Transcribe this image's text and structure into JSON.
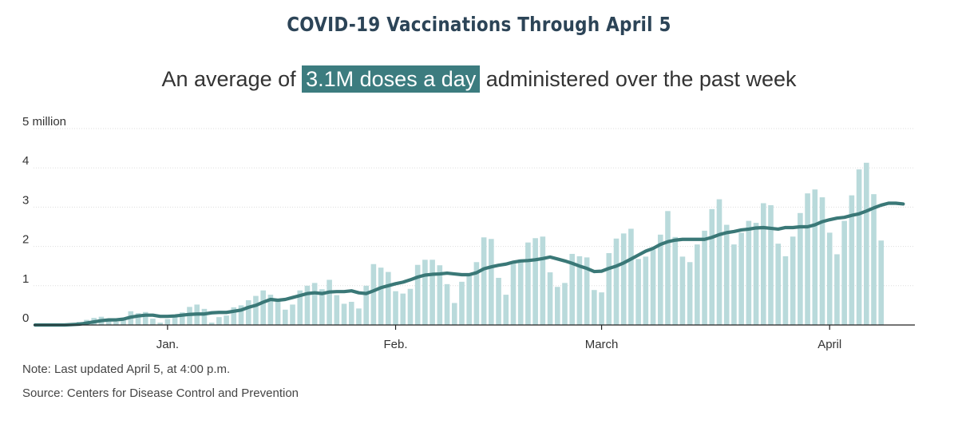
{
  "chart_data": {
    "type": "bar",
    "title": "COVID-19 Vaccinations Through April 5",
    "subtitle": {
      "before": "An average of ",
      "highlight": "3.1M doses a day",
      "after": " administered over the past week"
    },
    "ylabel": "",
    "xlabel": "",
    "ylim": [
      0,
      5
    ],
    "y_ticks": [
      {
        "value": 5,
        "label": "5 million"
      },
      {
        "value": 4,
        "label": "4"
      },
      {
        "value": 3,
        "label": "3"
      },
      {
        "value": 2,
        "label": "2"
      },
      {
        "value": 1,
        "label": "1"
      },
      {
        "value": 0,
        "label": "0"
      }
    ],
    "x_ticks": [
      {
        "index": 18,
        "label": "Jan."
      },
      {
        "index": 49,
        "label": "Feb."
      },
      {
        "index": 77,
        "label": "March"
      },
      {
        "index": 108,
        "label": "April"
      }
    ],
    "x_start": "2020-12-14",
    "x_end": "2021-04-05",
    "bar_color": "#b9dadb",
    "line_color": "#3a7877",
    "series": [
      {
        "name": "Daily doses",
        "kind": "bar",
        "values": [
          0.0,
          0.0,
          0.0,
          0.0,
          0.01,
          0.01,
          0.08,
          0.13,
          0.18,
          0.21,
          0.12,
          0.08,
          0.18,
          0.35,
          0.3,
          0.33,
          0.16,
          0.06,
          0.15,
          0.2,
          0.32,
          0.46,
          0.52,
          0.41,
          0.06,
          0.2,
          0.24,
          0.45,
          0.5,
          0.63,
          0.74,
          0.88,
          0.77,
          0.62,
          0.39,
          0.52,
          0.88,
          1.0,
          1.07,
          0.91,
          1.15,
          0.76,
          0.54,
          0.59,
          0.42,
          1.0,
          1.55,
          1.46,
          1.35,
          0.86,
          0.8,
          0.92,
          1.53,
          1.66,
          1.66,
          1.52,
          1.04,
          0.56,
          1.1,
          1.3,
          1.6,
          2.23,
          2.19,
          1.2,
          0.77,
          1.57,
          1.67,
          2.1,
          2.21,
          2.25,
          1.34,
          0.97,
          1.07,
          1.81,
          1.75,
          1.72,
          0.89,
          0.83,
          1.83,
          2.2,
          2.33,
          2.45,
          1.68,
          1.74,
          1.92,
          2.3,
          2.9,
          2.24,
          1.74,
          1.6,
          2.05,
          2.4,
          2.95,
          3.2,
          2.55,
          2.05,
          2.35,
          2.65,
          2.6,
          3.1,
          3.05,
          2.07,
          1.75,
          2.25,
          2.85,
          3.35,
          3.45,
          3.25,
          2.35,
          1.8,
          2.65,
          3.3,
          3.96,
          4.13,
          3.33,
          2.15
        ],
        "show_in_legend": false
      },
      {
        "name": "7-day average",
        "kind": "line",
        "values": [
          0.0,
          0.0,
          0.0,
          0.0,
          0.0,
          0.01,
          0.02,
          0.05,
          0.08,
          0.11,
          0.13,
          0.13,
          0.15,
          0.2,
          0.23,
          0.25,
          0.25,
          0.22,
          0.22,
          0.23,
          0.25,
          0.27,
          0.28,
          0.28,
          0.31,
          0.32,
          0.32,
          0.35,
          0.38,
          0.45,
          0.5,
          0.58,
          0.65,
          0.63,
          0.65,
          0.7,
          0.75,
          0.8,
          0.82,
          0.8,
          0.84,
          0.85,
          0.85,
          0.87,
          0.82,
          0.8,
          0.87,
          0.95,
          1.0,
          1.05,
          1.09,
          1.15,
          1.22,
          1.27,
          1.29,
          1.3,
          1.32,
          1.3,
          1.28,
          1.28,
          1.33,
          1.43,
          1.48,
          1.52,
          1.55,
          1.6,
          1.63,
          1.64,
          1.66,
          1.69,
          1.73,
          1.68,
          1.63,
          1.57,
          1.5,
          1.44,
          1.36,
          1.37,
          1.44,
          1.5,
          1.58,
          1.68,
          1.78,
          1.88,
          1.95,
          2.05,
          2.12,
          2.16,
          2.18,
          2.18,
          2.18,
          2.18,
          2.23,
          2.3,
          2.35,
          2.38,
          2.42,
          2.44,
          2.47,
          2.48,
          2.46,
          2.44,
          2.48,
          2.48,
          2.5,
          2.5,
          2.55,
          2.63,
          2.68,
          2.72,
          2.74,
          2.79,
          2.83,
          2.9,
          2.98,
          3.05,
          3.1,
          3.1,
          3.08
        ]
      }
    ]
  },
  "notes": {
    "note": "Note: Last updated April 5, at 4:00 p.m.",
    "source": "Source: Centers for Disease Control and Prevention"
  }
}
